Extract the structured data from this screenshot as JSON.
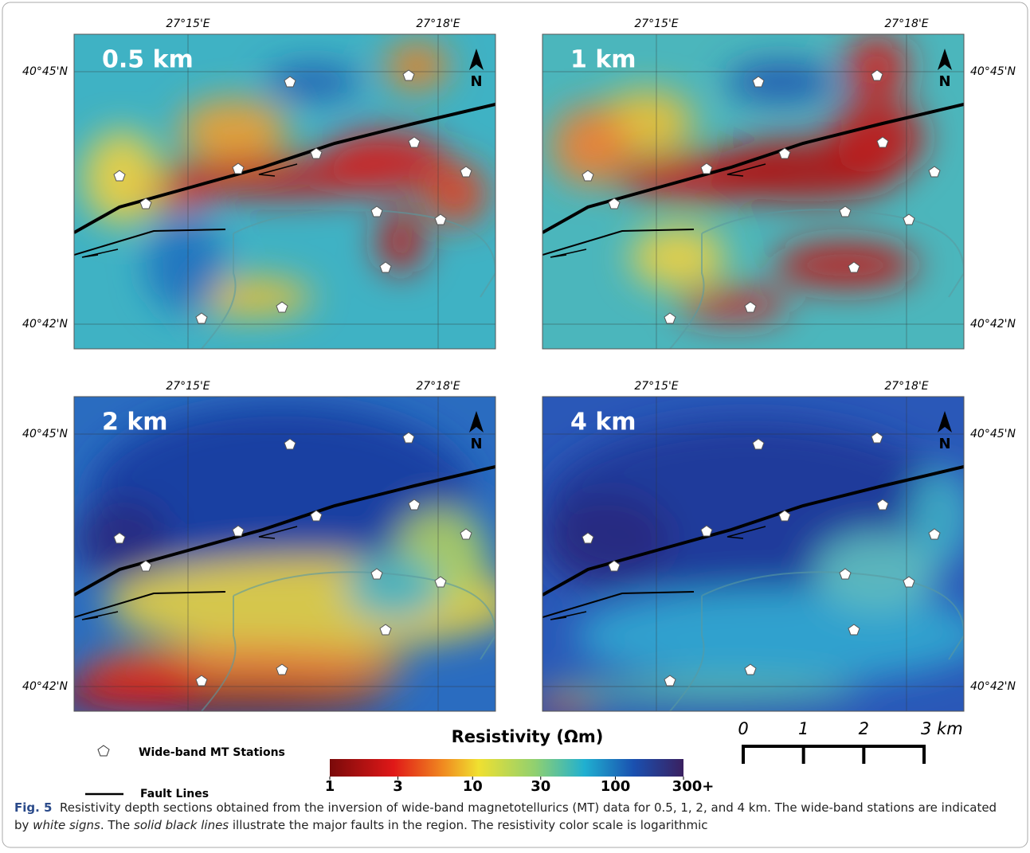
{
  "panels": [
    {
      "label": "0.5 km",
      "lon_labels": [
        "27°15'E",
        "27°18'E"
      ],
      "lat_labels": [
        "40°45'N",
        "40°42'N"
      ],
      "north": "N"
    },
    {
      "label": "1 km",
      "lon_labels": [
        "27°15'E",
        "27°18'E"
      ],
      "lat_labels": [
        "40°45'N",
        "40°42'N"
      ],
      "north": "N"
    },
    {
      "label": "2 km",
      "lon_labels": [
        "27°15'E",
        "27°18'E"
      ],
      "lat_labels": [
        "40°45'N",
        "40°42'N"
      ],
      "north": "N"
    },
    {
      "label": "4 km",
      "lon_labels": [
        "27°15'E",
        "27°18'E"
      ],
      "lat_labels": [
        "40°45'N",
        "40°42'N"
      ],
      "north": "N"
    }
  ],
  "legend": {
    "stations": "Wide-band MT Stations",
    "faults": "Fault Lines"
  },
  "colorbar": {
    "title": "Resistivity (Ωm)",
    "log": true,
    "range": [
      1,
      300
    ],
    "ticks": [
      1,
      3,
      10,
      30,
      100,
      {
        "value": 300,
        "label": "300+"
      }
    ]
  },
  "scalebar": {
    "range": [
      0,
      3
    ],
    "ticks": [
      0,
      1,
      2,
      {
        "value": 3,
        "label": "3 km"
      }
    ]
  },
  "caption": {
    "label": "Fig. 5",
    "parts": [
      {
        "text": "Resistivity depth sections obtained from the inversion of wide-band magnetotellurics (MT) data for 0.5, 1, 2, and 4 km. The wide-band stations are indicated by ",
        "italic": false
      },
      {
        "text": "white signs",
        "italic": true
      },
      {
        "text": ". The ",
        "italic": false
      },
      {
        "text": "solid black lines",
        "italic": true
      },
      {
        "text": " illustrate the major faults in the region. The resistivity color scale is logarithmic",
        "italic": false
      }
    ]
  }
}
